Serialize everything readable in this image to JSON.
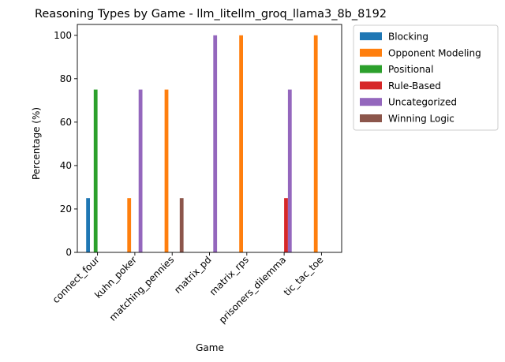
{
  "chart_data": {
    "type": "bar",
    "title": "Reasoning Types by Game - llm_litellm_groq_llama3_8b_8192",
    "xlabel": "Game",
    "ylabel": "Percentage (%)",
    "ylim": [
      0,
      105
    ],
    "yticks": [
      0,
      20,
      40,
      60,
      80,
      100
    ],
    "grid": false,
    "legend_position": "outside-right-top",
    "categories": [
      "connect_four",
      "kuhn_poker",
      "matching_pennies",
      "matrix_pd",
      "matrix_rps",
      "prisoners_dilemma",
      "tic_tac_toe"
    ],
    "series": [
      {
        "name": "Blocking",
        "color": "#1f77b4",
        "values": [
          25,
          0,
          0,
          0,
          0,
          0,
          0
        ]
      },
      {
        "name": "Opponent Modeling",
        "color": "#ff7f0e",
        "values": [
          0,
          25,
          75,
          0,
          100,
          0,
          100
        ]
      },
      {
        "name": "Positional",
        "color": "#2ca02c",
        "values": [
          75,
          0,
          0,
          0,
          0,
          0,
          0
        ]
      },
      {
        "name": "Rule-Based",
        "color": "#d62728",
        "values": [
          0,
          0,
          0,
          0,
          0,
          25,
          0
        ]
      },
      {
        "name": "Uncategorized",
        "color": "#9467bd",
        "values": [
          0,
          75,
          0,
          100,
          0,
          75,
          0
        ]
      },
      {
        "name": "Winning Logic",
        "color": "#8c564b",
        "values": [
          0,
          0,
          25,
          0,
          0,
          0,
          0
        ]
      }
    ]
  }
}
